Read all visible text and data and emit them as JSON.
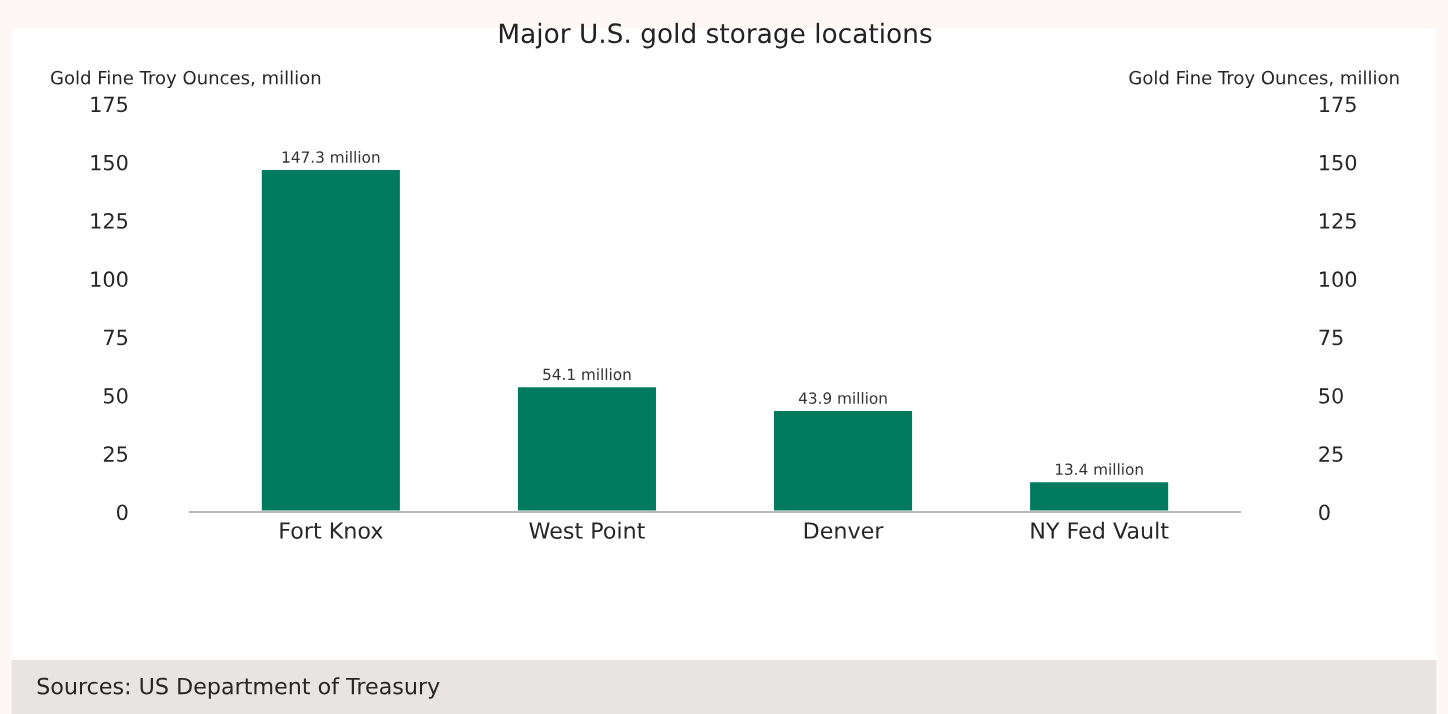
{
  "chart_data": {
    "type": "bar",
    "title": "Major U.S. gold storage locations",
    "ylabel": "Gold Fine Troy Ounces, million",
    "y2label": "Gold Fine Troy Ounces, million",
    "categories": [
      "Fort Knox",
      "West Point",
      "Denver",
      "NY Fed Vault"
    ],
    "values": [
      147.3,
      54.1,
      43.9,
      13.4
    ],
    "value_labels": [
      "147.3 million",
      "54.1 million",
      "43.9 million",
      "13.4 million"
    ],
    "color": "#007a5e",
    "ylim": [
      0,
      175
    ],
    "yticks": [
      0,
      25,
      50,
      75,
      100,
      125,
      150,
      175
    ],
    "y2lim": [
      0,
      175
    ],
    "y2ticks": [
      0,
      25,
      50,
      75,
      100,
      125,
      150,
      175
    ],
    "annotations": [
      "Sources: US Department of Treasury"
    ]
  }
}
